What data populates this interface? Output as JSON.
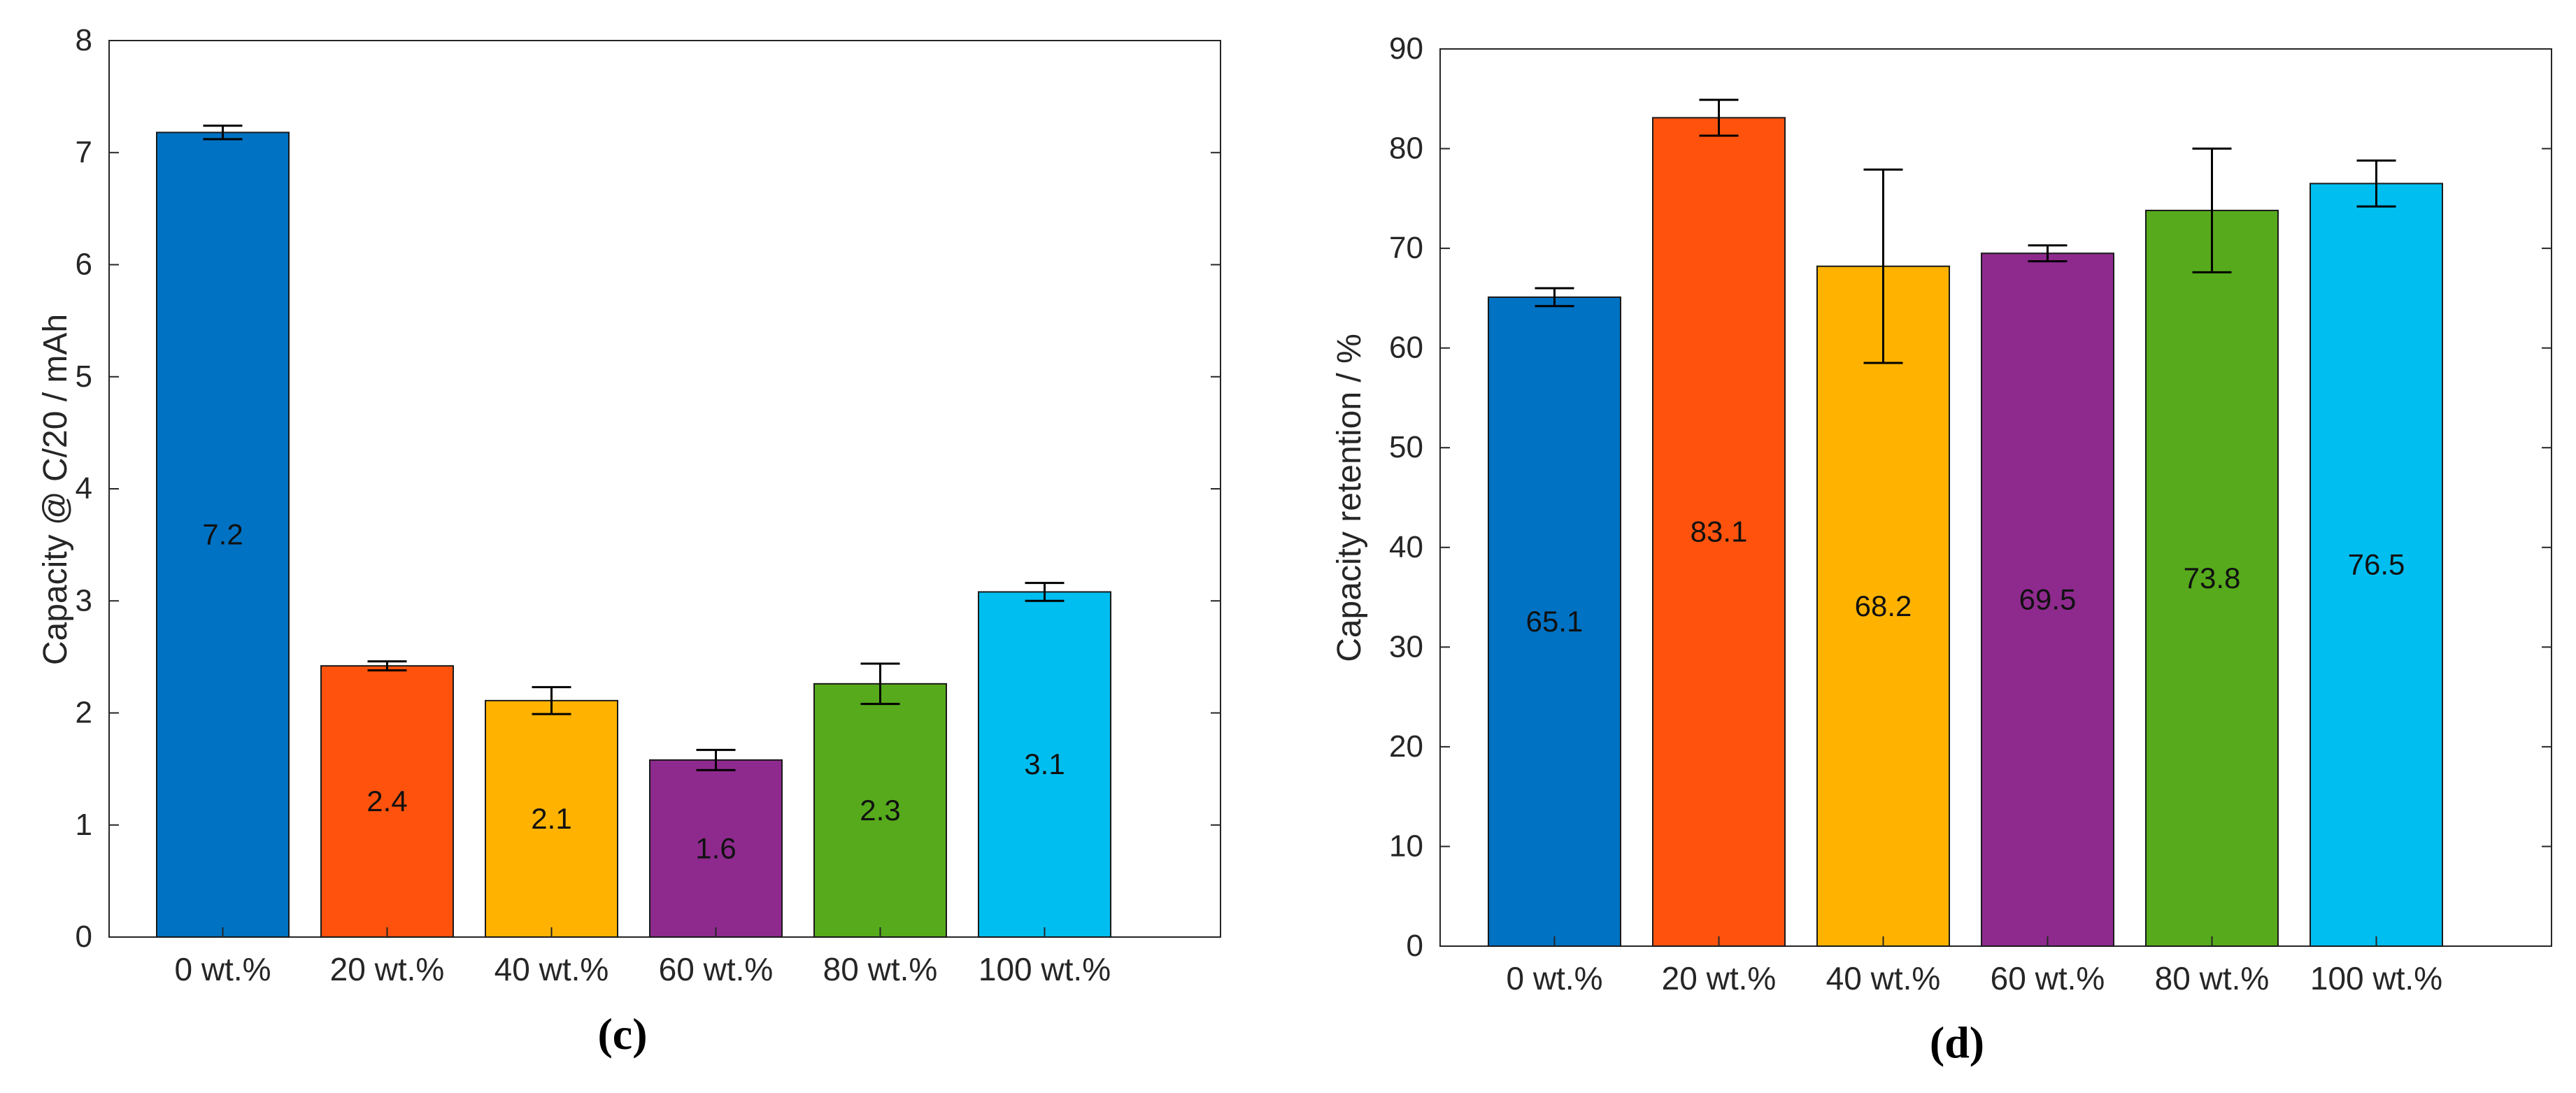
{
  "figure": {
    "bar_colors": [
      "#0072C3",
      "#FF530D",
      "#FFB300",
      "#8E2A8E",
      "#56AA1C",
      "#00BEF0"
    ],
    "axis_color": "#262626",
    "frame_color": "#262626",
    "outline_color": "#1a1a1a"
  },
  "chart_data": [
    {
      "id": "c",
      "panel_label": "(c)",
      "type": "bar",
      "title": "",
      "xlabel": "",
      "ylabel": "Capacity @ C/20 / mAh",
      "ylim": [
        0,
        8
      ],
      "yticks": [
        0,
        1,
        2,
        3,
        4,
        5,
        6,
        7,
        8
      ],
      "ytick_labels": [
        "0",
        "1",
        "2",
        "3",
        "4",
        "5",
        "6",
        "7",
        "8"
      ],
      "categories": [
        "0 wt.%",
        "20 wt.%",
        "40 wt.%",
        "60 wt.%",
        "80 wt.%",
        "100 wt.%"
      ],
      "values": [
        7.18,
        2.42,
        2.11,
        1.58,
        2.26,
        3.08
      ],
      "errors": [
        0.06,
        0.04,
        0.12,
        0.09,
        0.18,
        0.08
      ],
      "value_labels": [
        "7.2",
        "2.4",
        "2.1",
        "1.6",
        "2.3",
        "3.1"
      ],
      "grid": false,
      "legend": "none"
    },
    {
      "id": "d",
      "panel_label": "(d)",
      "type": "bar",
      "title": "",
      "xlabel": "",
      "ylabel": "Capacity retention / %",
      "ylim": [
        0,
        90
      ],
      "yticks": [
        0,
        10,
        20,
        30,
        40,
        50,
        60,
        70,
        80,
        90
      ],
      "ytick_labels": [
        "0",
        "10",
        "20",
        "30",
        "40",
        "50",
        "60",
        "70",
        "80",
        "90"
      ],
      "categories": [
        "0 wt.%",
        "20 wt.%",
        "40 wt.%",
        "60 wt.%",
        "80 wt.%",
        "100 wt.%"
      ],
      "values": [
        65.1,
        83.1,
        68.2,
        69.5,
        73.8,
        76.5
      ],
      "errors": [
        0.9,
        1.8,
        9.7,
        0.8,
        6.2,
        2.3
      ],
      "value_labels": [
        "65.1",
        "83.1",
        "68.2",
        "69.5",
        "73.8",
        "76.5"
      ],
      "grid": false,
      "legend": "none"
    }
  ]
}
